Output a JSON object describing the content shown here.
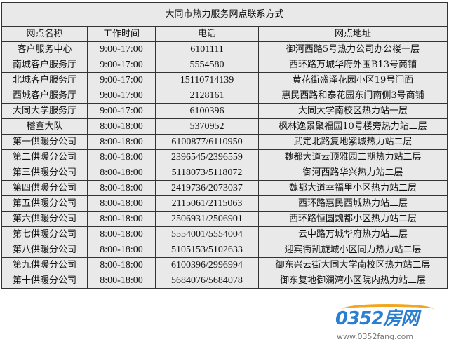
{
  "title": "大同市热力服务网点联系方式",
  "headers": [
    "网点名称",
    "工作时间",
    "电话",
    "网点地址"
  ],
  "rows": [
    [
      "客户服务中心",
      "9:00-17:00",
      "6101111",
      "御河西路5号热力公司办公楼一层"
    ],
    [
      "南城客户服务厅",
      "9:00-17:00",
      "5554580",
      "西环路万城华府外围B13号商铺"
    ],
    [
      "北城客户服务厅",
      "9:00-17:00",
      "15110714139",
      "黄花街盛泽花园小区19号门面"
    ],
    [
      "西城客户服务厅",
      "9:00-17:00",
      "2128161",
      "惠民西路和泰花园东门南侧3号商铺"
    ],
    [
      "大同大学服务厅",
      "9:00-17:00",
      "6100396",
      "大同大学南校区热力站一层"
    ],
    [
      "稽查大队",
      "8:00-18:00",
      "5370952",
      "枫林逸景聚福园10号楼旁热力站二层"
    ],
    [
      "第一供暖分公司",
      "8:00-18:00",
      "6100877/6110950",
      "武定北路复地紫城热力站二层"
    ],
    [
      "第二供暖分公司",
      "8:00-18:00",
      "2396545/2396559",
      "魏都大道云顶雅园二期热力站二层"
    ],
    [
      "第三供暖分公司",
      "8:00-18:00",
      "5118073/5118072",
      "御河西路华兴热力站二层"
    ],
    [
      "第四供暖分公司",
      "8:00-18:00",
      "2419736/2073037",
      "魏都大道幸福里小区热力站二层"
    ],
    [
      "第五供暖分公司",
      "8:00-18:00",
      "2115061/2115063",
      "西环路惠民西城热力站二层"
    ],
    [
      "第六供暖分公司",
      "8:00-18:00",
      "2506931/2506901",
      "西环路恒圆魏都小区热力站二层"
    ],
    [
      "第七供暖分公司",
      "8:00-18:00",
      "5554001/5554004",
      "云中路万城华府热力站二层"
    ],
    [
      "第八供暖分公司",
      "8:00-18:00",
      "5105153/5102633",
      "迎宾街凯旋城小区同力热力站二层"
    ],
    [
      "第九供暖分公司",
      "8:00-18:00",
      "6100396/2996994",
      "御东兴云街大同大学南校区热力站二层"
    ],
    [
      "第十供暖分公司",
      "8:00-18:00",
      "5684076/5684078",
      "御东复地御澜湾小区院内热力站二层"
    ]
  ],
  "watermark": {
    "brand": "0352房网",
    "url": "www.0352fang.com",
    "colors": {
      "blue": "#2a7fd0",
      "orange": "#f2a521"
    }
  }
}
